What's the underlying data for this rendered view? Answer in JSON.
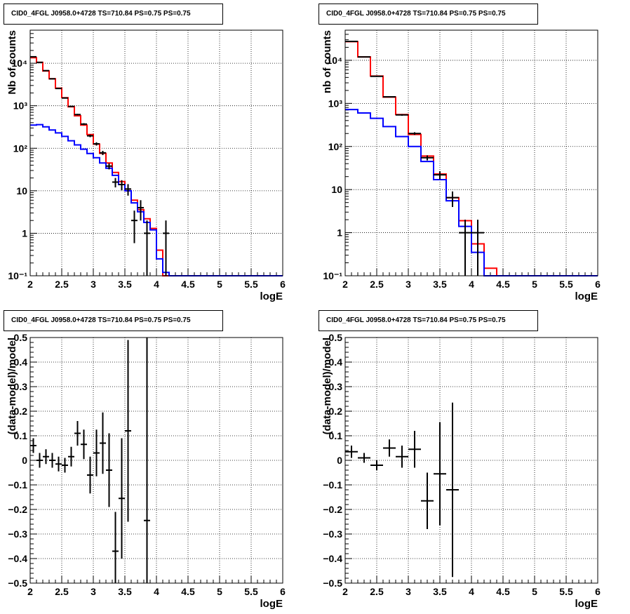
{
  "panels": [
    {
      "title": "CID0_4FGL J0958.0+4728 TS=710.84 PS=0.75 PS=0.75",
      "xlabel": "logE",
      "ylabel": "Nb of counts"
    },
    {
      "title": "CID0_4FGL J0958.0+4728 TS=710.84 PS=0.75 PS=0.75",
      "xlabel": "logE",
      "ylabel": "nb of counts"
    },
    {
      "title": "CID0_4FGL J0958.0+4728 TS=710.84 PS=0.75 PS=0.75",
      "xlabel": "logE",
      "ylabel": "(data-model)/model"
    },
    {
      "title": "CID0_4FGL J0958.0+4728 TS=710.84 PS=0.75 PS=0.75",
      "xlabel": "logE",
      "ylabel": "(data-model)/model"
    }
  ],
  "colors": {
    "total_model": "#ff0000",
    "component_model": "#0000ff",
    "data": "#000000"
  },
  "chart_data": [
    {
      "type": "line",
      "panel": "top-left",
      "log_y": true,
      "xlim": [
        2,
        6
      ],
      "ylim": [
        0.1,
        60000
      ],
      "grid": true,
      "x_ticks": [
        "2",
        "2.5",
        "3",
        "3.5",
        "4",
        "4.5",
        "5",
        "5.5",
        "6"
      ],
      "y_ticks": [
        {
          "value": 0.1,
          "label": "10⁻¹"
        },
        {
          "value": 1,
          "label": "1"
        },
        {
          "value": 10,
          "label": "10"
        },
        {
          "value": 100,
          "label": "10²"
        },
        {
          "value": 1000,
          "label": "10³"
        },
        {
          "value": 10000,
          "label": "10⁴"
        }
      ],
      "bin_edges": [
        2,
        2.1,
        2.2,
        2.3,
        2.4,
        2.5,
        2.6,
        2.7,
        2.8,
        2.9,
        3,
        3.1,
        3.2,
        3.3,
        3.4,
        3.5,
        3.6,
        3.7,
        3.8,
        3.9,
        4,
        4.1,
        4.2,
        4.3,
        4.4,
        4.5,
        4.6,
        4.7,
        4.8,
        4.9,
        5,
        5.1,
        5.2,
        5.3,
        5.4,
        5.5,
        5.6,
        5.7,
        5.8,
        5.9,
        6
      ],
      "series": [
        {
          "role": "total_model",
          "values": [
            13500,
            10500,
            6600,
            4300,
            2600,
            1550,
            950,
            580,
            350,
            210,
            125,
            76,
            45,
            27,
            16.5,
            10,
            6,
            3.6,
            2.2,
            1.3,
            0.4,
            0.1,
            0.1,
            0.1,
            0.1,
            0.1,
            0.1,
            0.1,
            0.1,
            0.1,
            0.1,
            0.1,
            0.1,
            0.1,
            0.1,
            0.1,
            0.1,
            0.1,
            0.1,
            0.1
          ]
        },
        {
          "role": "component_model",
          "values": [
            350,
            360,
            320,
            270,
            230,
            190,
            150,
            120,
            95,
            75,
            60,
            45,
            34,
            23,
            14,
            10,
            5.2,
            3.2,
            1.8,
            1.2,
            0.25,
            0.12,
            0.1,
            0.1,
            0.1,
            0.1,
            0.1,
            0.1,
            0.1,
            0.1,
            0.1,
            0.1,
            0.1,
            0.1,
            0.1,
            0.1,
            0.1,
            0.1,
            0.1,
            0.1
          ]
        },
        {
          "role": "data",
          "points": [
            {
              "x": 2.05,
              "y": 14200
            },
            {
              "x": 2.15,
              "y": 10500
            },
            {
              "x": 2.25,
              "y": 6700
            },
            {
              "x": 2.35,
              "y": 4300
            },
            {
              "x": 2.45,
              "y": 2550
            },
            {
              "x": 2.55,
              "y": 1520
            },
            {
              "x": 2.65,
              "y": 965
            },
            {
              "x": 2.75,
              "y": 620
            },
            {
              "x": 2.85,
              "y": 370
            },
            {
              "x": 2.95,
              "y": 196
            },
            {
              "x": 3.05,
              "y": 127
            },
            {
              "x": 3.15,
              "y": 78
            },
            {
              "x": 3.25,
              "y": 38
            },
            {
              "x": 3.35,
              "y": 16
            },
            {
              "x": 3.45,
              "y": 14
            },
            {
              "x": 3.55,
              "y": 11
            },
            {
              "x": 3.65,
              "y": 2
            },
            {
              "x": 3.75,
              "y": 4
            },
            {
              "x": 3.85,
              "y": 1
            },
            {
              "x": 4.15,
              "y": 1
            }
          ]
        }
      ]
    },
    {
      "type": "line",
      "panel": "top-right",
      "log_y": true,
      "xlim": [
        2,
        6
      ],
      "ylim": [
        0.1,
        50000
      ],
      "grid": true,
      "x_ticks": [
        "2",
        "2.5",
        "3",
        "3.5",
        "4",
        "4.5",
        "5",
        "5.5",
        "6"
      ],
      "y_ticks": [
        {
          "value": 0.1,
          "label": "10⁻¹"
        },
        {
          "value": 1,
          "label": "1"
        },
        {
          "value": 10,
          "label": "10"
        },
        {
          "value": 100,
          "label": "10²"
        },
        {
          "value": 1000,
          "label": "10³"
        },
        {
          "value": 10000,
          "label": "10⁴"
        }
      ],
      "bin_edges": [
        2,
        2.2,
        2.4,
        2.6,
        2.8,
        3,
        3.2,
        3.4,
        3.6,
        3.8,
        4,
        4.2,
        4.4,
        4.6,
        4.8,
        5,
        5.2,
        5.4,
        5.6,
        5.8,
        6
      ],
      "series": [
        {
          "role": "total_model",
          "values": [
            27000,
            12000,
            4300,
            1400,
            550,
            190,
            60,
            23,
            6.5,
            1.9,
            0.55,
            0.15,
            0.1,
            0.1,
            0.1,
            0.1,
            0.1,
            0.1,
            0.1,
            0.1
          ]
        },
        {
          "role": "component_model",
          "values": [
            720,
            600,
            450,
            290,
            170,
            100,
            45,
            17,
            5.5,
            1.4,
            0.35,
            0.1,
            0.1,
            0.1,
            0.1,
            0.1,
            0.1,
            0.1,
            0.1,
            0.1
          ]
        },
        {
          "role": "data",
          "points": [
            {
              "x": 2.1,
              "y": 27500
            },
            {
              "x": 2.3,
              "y": 12000
            },
            {
              "x": 2.5,
              "y": 4250
            },
            {
              "x": 2.7,
              "y": 1420
            },
            {
              "x": 2.9,
              "y": 540
            },
            {
              "x": 3.1,
              "y": 200
            },
            {
              "x": 3.3,
              "y": 55
            },
            {
              "x": 3.5,
              "y": 22
            },
            {
              "x": 3.7,
              "y": 6.5
            },
            {
              "x": 3.9,
              "y": 1
            },
            {
              "x": 4.1,
              "y": 1
            }
          ]
        }
      ]
    },
    {
      "type": "scatter",
      "panel": "bottom-left",
      "xlim": [
        2,
        6
      ],
      "ylim": [
        -0.5,
        0.5
      ],
      "grid": true,
      "x_ticks": [
        "2",
        "2.5",
        "3",
        "3.5",
        "4",
        "4.5",
        "5",
        "5.5",
        "6"
      ],
      "y_ticks": [
        "-0.5",
        "-0.4",
        "-0.3",
        "-0.2",
        "-0.1",
        "0",
        "0.1",
        "0.2",
        "0.3",
        "0.4",
        "0.5"
      ],
      "x_half_width": 0.05,
      "points": [
        {
          "x": 2.05,
          "y": 0.06,
          "err": 0.03
        },
        {
          "x": 2.15,
          "y": 0.0,
          "err": 0.03
        },
        {
          "x": 2.25,
          "y": 0.015,
          "err": 0.03
        },
        {
          "x": 2.35,
          "y": 0.0,
          "err": 0.03
        },
        {
          "x": 2.45,
          "y": -0.015,
          "err": 0.03
        },
        {
          "x": 2.55,
          "y": -0.02,
          "err": 0.03
        },
        {
          "x": 2.65,
          "y": 0.015,
          "err": 0.04
        },
        {
          "x": 2.75,
          "y": 0.11,
          "err": 0.05
        },
        {
          "x": 2.85,
          "y": 0.065,
          "err": 0.06
        },
        {
          "x": 2.95,
          "y": -0.06,
          "err": 0.075
        },
        {
          "x": 3.05,
          "y": 0.03,
          "err": 0.095
        },
        {
          "x": 3.15,
          "y": 0.07,
          "err": 0.125
        },
        {
          "x": 3.25,
          "y": -0.04,
          "err": 0.15
        },
        {
          "x": 3.35,
          "y": -0.37,
          "err": 0.16
        },
        {
          "x": 3.45,
          "y": -0.155,
          "err": 0.245
        },
        {
          "x": 3.55,
          "y": 0.12,
          "err": 0.37
        },
        {
          "x": 3.85,
          "y": -0.245,
          "err": 0.75
        }
      ]
    },
    {
      "type": "scatter",
      "panel": "bottom-right",
      "xlim": [
        2,
        6
      ],
      "ylim": [
        -0.5,
        0.5
      ],
      "grid": true,
      "x_ticks": [
        "2",
        "2.5",
        "3",
        "3.5",
        "4",
        "4.5",
        "5",
        "5.5",
        "6"
      ],
      "y_ticks": [
        "-0.5",
        "-0.4",
        "-0.3",
        "-0.2",
        "-0.1",
        "0",
        "0.1",
        "0.2",
        "0.3",
        "0.4",
        "0.5"
      ],
      "x_half_width": 0.1,
      "points": [
        {
          "x": 2.1,
          "y": 0.035,
          "err": 0.025
        },
        {
          "x": 2.3,
          "y": 0.01,
          "err": 0.02
        },
        {
          "x": 2.5,
          "y": -0.02,
          "err": 0.02
        },
        {
          "x": 2.7,
          "y": 0.05,
          "err": 0.035
        },
        {
          "x": 2.9,
          "y": 0.015,
          "err": 0.045
        },
        {
          "x": 3.1,
          "y": 0.045,
          "err": 0.075
        },
        {
          "x": 3.3,
          "y": -0.165,
          "err": 0.115
        },
        {
          "x": 3.5,
          "y": -0.055,
          "err": 0.21
        },
        {
          "x": 3.7,
          "y": -0.12,
          "err": 0.355
        }
      ]
    }
  ]
}
